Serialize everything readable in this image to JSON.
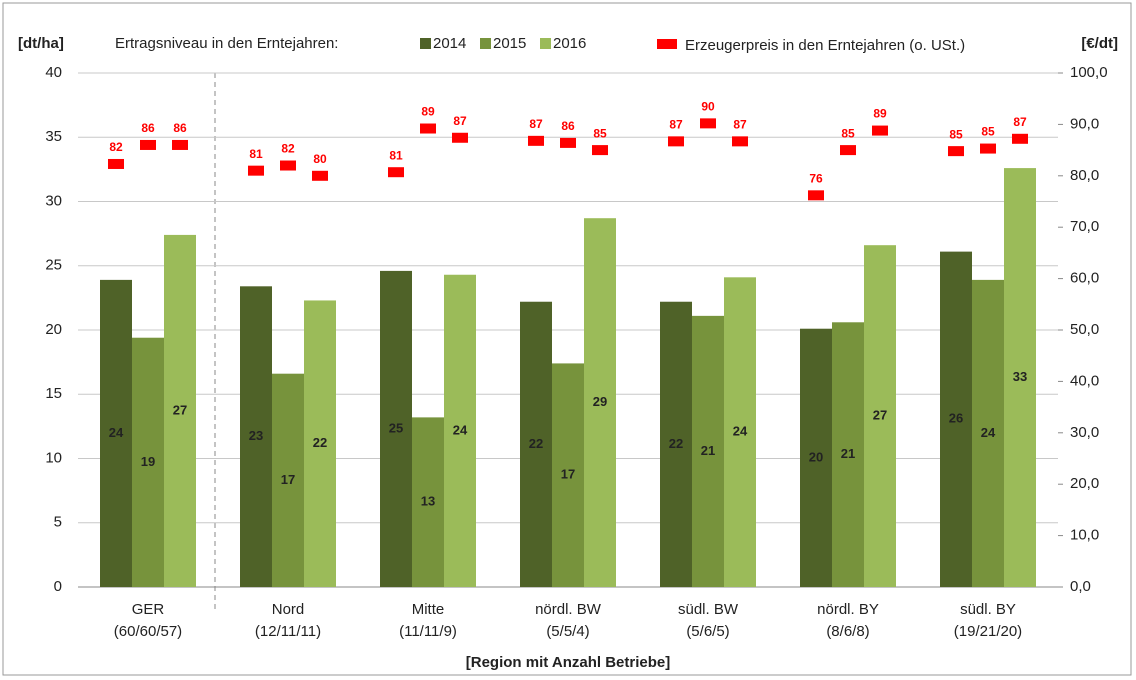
{
  "chart_data": {
    "type": "bar",
    "y_label": "[dt/ha]",
    "y2_label": "[€/dt]",
    "x_label": "[Region mit Anzahl Betriebe]",
    "legend_title": "Ertragsniveau in den Erntejahren:",
    "categories": [
      [
        "GER",
        "(60/60/57)"
      ],
      [
        "Nord",
        "(12/11/11)"
      ],
      [
        "Mitte",
        "(11/11/9)"
      ],
      [
        "nördl. BW",
        "(5/5/4)"
      ],
      [
        "südl. BW",
        "(5/6/5)"
      ],
      [
        "nördl. BY",
        "(8/6/8)"
      ],
      [
        "südl. BY",
        "(19/21/20)"
      ]
    ],
    "series": [
      {
        "name": "2014",
        "color": "#4f6228",
        "values": [
          23.9,
          23.4,
          24.6,
          22.2,
          22.2,
          20.1,
          26.1
        ],
        "value_labels": [
          "24",
          "23",
          "25",
          "22",
          "22",
          "20",
          "26"
        ]
      },
      {
        "name": "2015",
        "color": "#77933c",
        "values": [
          19.4,
          16.6,
          13.2,
          17.4,
          21.1,
          20.6,
          23.9
        ],
        "value_labels": [
          "19",
          "17",
          "13",
          "17",
          "21",
          "21",
          "24"
        ]
      },
      {
        "name": "2016",
        "color": "#9bbb59",
        "values": [
          27.4,
          22.3,
          24.3,
          28.7,
          24.1,
          26.6,
          32.6
        ],
        "value_labels": [
          "27",
          "22",
          "24",
          "29",
          "24",
          "27",
          "33"
        ]
      },
      {
        "name": "Erzeugerpreis in den Erntejahren (o. USt.)",
        "color": "#ff0000",
        "axis": "y2",
        "marker": "dash",
        "values": [
          [
            82.3,
            86.0,
            86.0
          ],
          [
            81.0,
            82.0,
            80.0
          ],
          [
            80.7,
            89.2,
            87.4
          ],
          [
            86.8,
            86.4,
            85.0
          ],
          [
            86.7,
            90.2,
            86.7
          ],
          [
            76.2,
            85.0,
            88.8
          ],
          [
            84.8,
            85.3,
            87.2
          ]
        ],
        "value_labels": [
          [
            "82",
            "86",
            "86"
          ],
          [
            "81",
            "82",
            "80"
          ],
          [
            "81",
            "89",
            "87"
          ],
          [
            "87",
            "86",
            "85"
          ],
          [
            "87",
            "90",
            "87"
          ],
          [
            "76",
            "85",
            "89"
          ],
          [
            "85",
            "85",
            "87"
          ]
        ]
      }
    ],
    "ylim": [
      0,
      40
    ],
    "yticks": [
      0,
      5,
      10,
      15,
      20,
      25,
      30,
      35,
      40
    ],
    "y2lim": [
      0,
      100
    ],
    "y2ticks": [
      {
        "value": 0,
        "label": "0,0"
      },
      {
        "value": 10,
        "label": "10,0"
      },
      {
        "value": 20,
        "label": "20,0"
      },
      {
        "value": 30,
        "label": "30,0"
      },
      {
        "value": 40,
        "label": "40,0"
      },
      {
        "value": 50,
        "label": "50,0"
      },
      {
        "value": 60,
        "label": "60,0"
      },
      {
        "value": 70,
        "label": "70,0"
      },
      {
        "value": 80,
        "label": "80,0"
      },
      {
        "value": 90,
        "label": "90,0"
      },
      {
        "value": 100,
        "label": "100,0"
      }
    ],
    "grid": true
  }
}
